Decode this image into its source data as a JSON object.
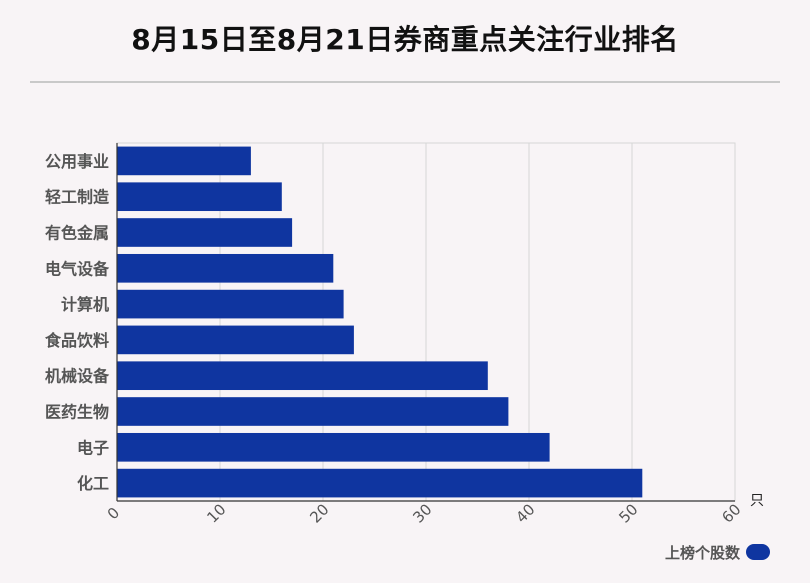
{
  "title": "8月15日至8月21日券商重点关注行业排名",
  "chart_data": {
    "type": "bar",
    "orientation": "horizontal",
    "categories": [
      "公用事业",
      "轻工制造",
      "有色金属",
      "电气设备",
      "计算机",
      "食品饮料",
      "机械设备",
      "医药生物",
      "电子",
      "化工"
    ],
    "series": [
      {
        "name": "上榜个股数",
        "values": [
          13,
          16,
          17,
          21,
          22,
          23,
          36,
          38,
          42,
          51
        ]
      }
    ],
    "xlim": [
      0,
      60
    ],
    "x_ticks": [
      0,
      10,
      20,
      30,
      40,
      50,
      60
    ],
    "unit_label": "只",
    "grid": true,
    "legend_position": "bottom-right",
    "bar_color": "#0f35a0"
  }
}
